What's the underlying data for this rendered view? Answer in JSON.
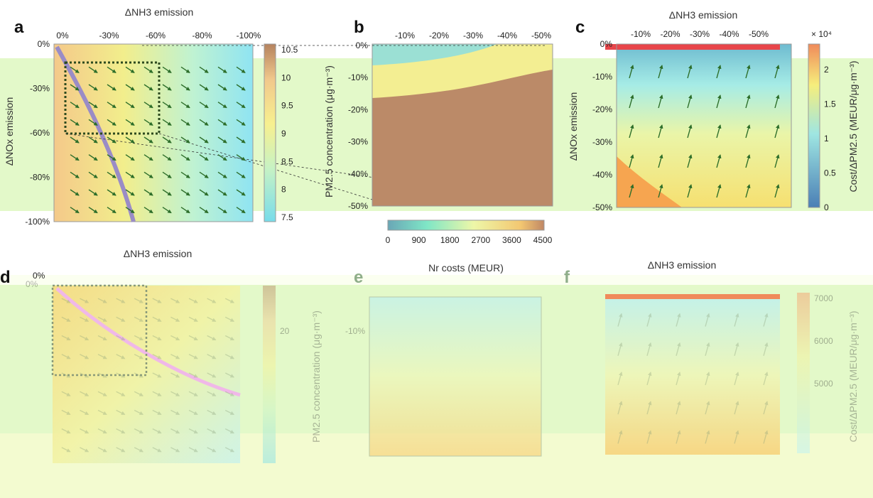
{
  "panels": {
    "a": {
      "label": "a"
    },
    "b": {
      "label": "b"
    },
    "c": {
      "label": "c"
    },
    "d": {
      "label": "d"
    },
    "e": {
      "label": "e"
    },
    "f": {
      "label": "f"
    }
  },
  "chart_data": [
    {
      "panel": "a",
      "type": "heatmap",
      "xlabel": "ΔNH3 emission",
      "ylabel": "ΔNOx emission",
      "x_ticks": [
        "0%",
        "-30%",
        "-60%",
        "-80%",
        "-100%"
      ],
      "y_ticks": [
        "0%",
        "-30%",
        "-60%",
        "-80%",
        "-100%"
      ],
      "colorbar_label": "PM2.5 concentration (μg·m⁻³)",
      "colorbar_ticks": [
        "10.5",
        "10",
        "9.5",
        "9",
        "8.5",
        "8",
        "7.5"
      ],
      "annotation": "curved optimal-path line with gradient arrows"
    },
    {
      "panel": "b",
      "type": "heatmap",
      "x_ticks": [
        "-10%",
        "-20%",
        "-30%",
        "-40%",
        "-50%"
      ],
      "y_ticks": [
        "0%",
        "-10%",
        "-20%",
        "-30%",
        "-40%",
        "-50%"
      ],
      "colorbar_label": "Nr costs (MEUR)",
      "colorbar_ticks": [
        "0",
        "900",
        "1800",
        "2700",
        "3600",
        "4500"
      ]
    },
    {
      "panel": "c",
      "type": "heatmap",
      "xlabel": "ΔNH3 emission",
      "ylabel": "ΔNOx emission",
      "x_ticks": [
        "-10%",
        "-20%",
        "-30%",
        "-40%",
        "-50%"
      ],
      "y_ticks": [
        "0%",
        "-10%",
        "-20%",
        "-30%",
        "-40%",
        "-50%"
      ],
      "colorbar_label": "Cost/ΔPM2.5 (MEUR/μg·m⁻³)",
      "colorbar_ticks": [
        "2",
        "1.5",
        "1",
        "0.5",
        "0"
      ],
      "colorbar_multiplier": "× 10⁴"
    },
    {
      "panel": "d",
      "type": "heatmap",
      "xlabel": "ΔNH3 emission",
      "x_ticks": [
        "0%"
      ],
      "y_ticks": [
        "0%"
      ],
      "colorbar_ticks": [
        "20"
      ],
      "colorbar_label": "PM2.5 concentration (μg·m⁻³)"
    },
    {
      "panel": "e",
      "type": "heatmap",
      "y_ticks": [
        "-10%"
      ]
    },
    {
      "panel": "f",
      "type": "heatmap",
      "xlabel": "ΔNH3 emission",
      "colorbar_ticks": [
        "7000",
        "6000",
        "5000"
      ],
      "colorbar_label": "Cost/ΔPM2.5 (MEUR/μg·m⁻³)"
    }
  ]
}
